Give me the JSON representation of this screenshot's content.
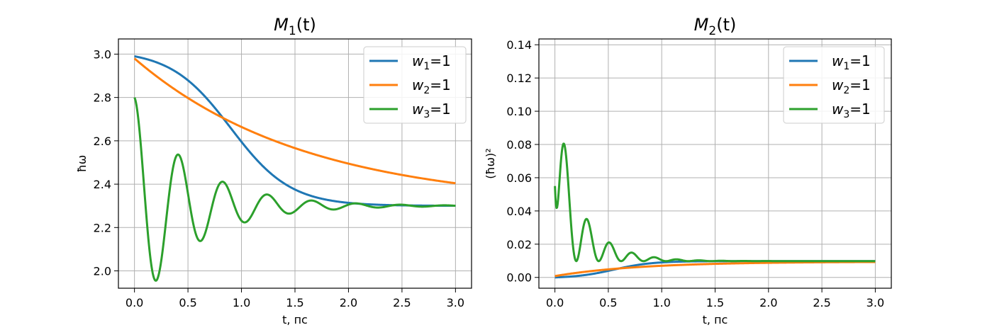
{
  "chart_data": [
    {
      "type": "line",
      "title_main": "M",
      "title_sub": "1",
      "title_arg": "(t)",
      "xlabel": "t, пс",
      "ylabel": "ħω",
      "xlim": [
        -0.15,
        3.15
      ],
      "ylim": [
        1.92,
        3.07
      ],
      "xticks": [
        0.0,
        0.5,
        1.0,
        1.5,
        2.0,
        2.5,
        3.0
      ],
      "xtick_labels": [
        "0.0",
        "0.5",
        "1.0",
        "1.5",
        "2.0",
        "2.5",
        "3.0"
      ],
      "yticks": [
        2.0,
        2.2,
        2.4,
        2.6,
        2.8,
        3.0
      ],
      "ytick_labels": [
        "2.0",
        "2.2",
        "2.4",
        "2.6",
        "2.8",
        "3.0"
      ],
      "grid": true,
      "legend_position": "top-right",
      "series": [
        {
          "name": "w",
          "name_sub": "1",
          "name_suffix": "=1",
          "color": "#1f77b4",
          "model": {
            "kind": "sigmoid",
            "start": 2.99,
            "end": 2.3,
            "center": 0.9,
            "width": 0.28
          }
        },
        {
          "name": "w",
          "name_sub": "2",
          "name_suffix": "=1",
          "color": "#ff7f0e",
          "model": {
            "kind": "exp",
            "start": 2.98,
            "end": 2.3,
            "tau": 1.6
          }
        },
        {
          "name": "w",
          "name_sub": "3",
          "name_suffix": "=1",
          "color": "#2ca02c",
          "model": {
            "kind": "damped_cos",
            "base": 2.3,
            "amp": 0.5,
            "tau": 0.55,
            "period": 0.415
          }
        }
      ]
    },
    {
      "type": "line",
      "title_main": "M",
      "title_sub": "2",
      "title_arg": "(t)",
      "xlabel": "t, пс",
      "ylabel": "(ħω)²",
      "xlim": [
        -0.15,
        3.15
      ],
      "ylim": [
        -0.0065,
        0.1435
      ],
      "xticks": [
        0.0,
        0.5,
        1.0,
        1.5,
        2.0,
        2.5,
        3.0
      ],
      "xtick_labels": [
        "0.0",
        "0.5",
        "1.0",
        "1.5",
        "2.0",
        "2.5",
        "3.0"
      ],
      "yticks": [
        0.0,
        0.02,
        0.04,
        0.06,
        0.08,
        0.1,
        0.12,
        0.14
      ],
      "ytick_labels": [
        "0.00",
        "0.02",
        "0.04",
        "0.06",
        "0.08",
        "0.10",
        "0.12",
        "0.14"
      ],
      "grid": true,
      "legend_position": "top-right",
      "series": [
        {
          "name": "w",
          "name_sub": "1",
          "name_suffix": "=1",
          "color": "#1f77b4",
          "model": {
            "kind": "rise_sigmoid",
            "end": 0.0098,
            "center": 0.55,
            "width": 0.18
          }
        },
        {
          "name": "w",
          "name_sub": "2",
          "name_suffix": "=1",
          "color": "#ff7f0e",
          "model": {
            "kind": "rise_exp",
            "start": 0.0008,
            "end": 0.0095,
            "tau": 0.8
          }
        },
        {
          "name": "w",
          "name_sub": "3",
          "name_suffix": "=1",
          "color": "#2ca02c",
          "model": {
            "kind": "damped_pulse",
            "base": 0.0098,
            "amp": 0.135,
            "tau": 0.27,
            "period": 0.21,
            "start": 0.055
          }
        }
      ]
    }
  ]
}
